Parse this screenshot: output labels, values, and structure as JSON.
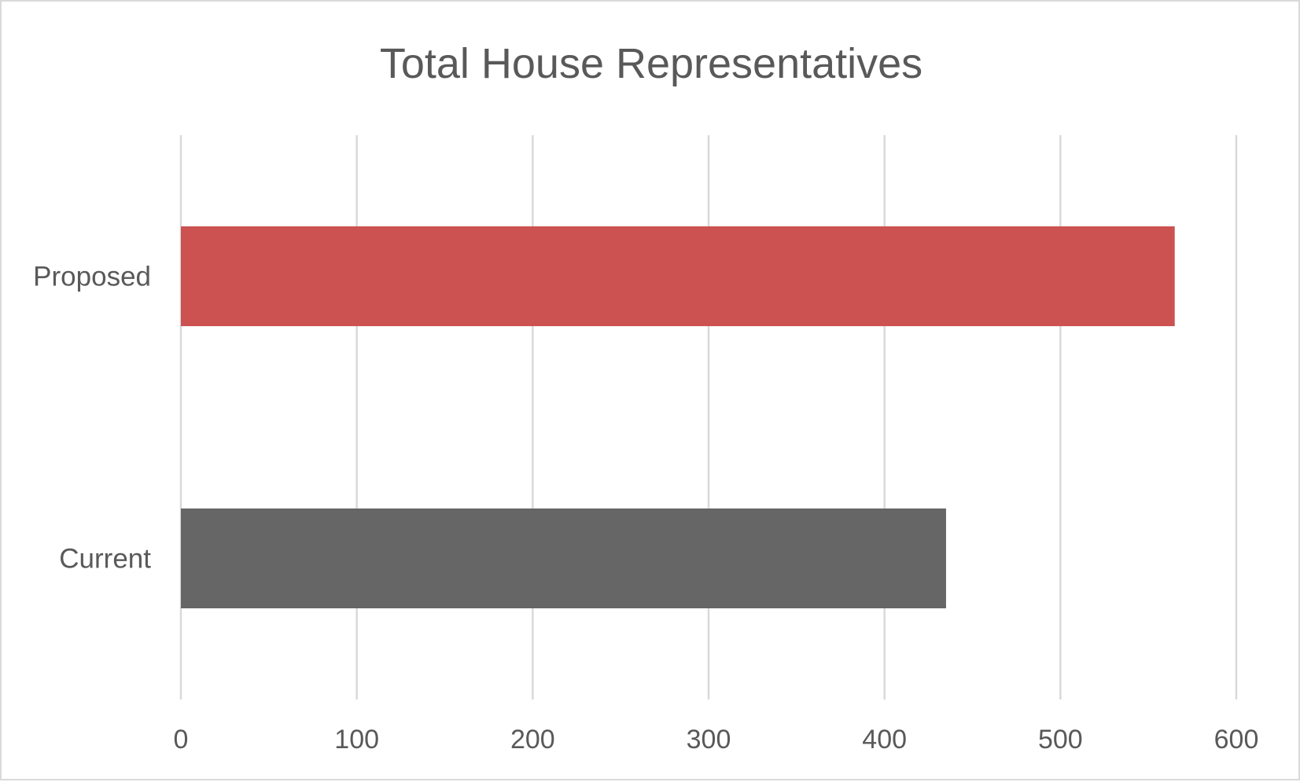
{
  "chart_data": {
    "type": "bar",
    "orientation": "horizontal",
    "title": "Total House Representatives",
    "categories": [
      "Proposed",
      "Current"
    ],
    "values": [
      565,
      435
    ],
    "bar_colors": [
      "#cc5252",
      "#666666"
    ],
    "xlim": [
      0,
      600
    ],
    "x_ticks": [
      0,
      100,
      200,
      300,
      400,
      500,
      600
    ],
    "x_tick_labels": [
      "0",
      "100",
      "200",
      "300",
      "400",
      "500",
      "600"
    ],
    "xlabel": "",
    "ylabel": "",
    "grid": "vertical",
    "legend": "none"
  }
}
